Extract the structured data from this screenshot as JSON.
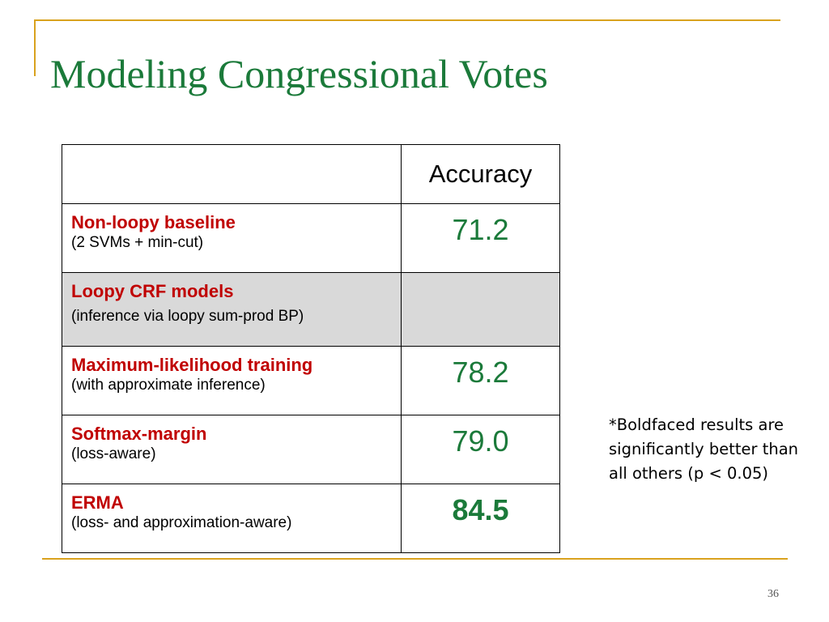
{
  "slide": {
    "title": "Modeling Congressional Votes",
    "page_number": "36"
  },
  "table": {
    "header": {
      "method": "",
      "accuracy": "Accuracy"
    },
    "rows": [
      {
        "name": "Non-loopy baseline",
        "desc": "(2 SVMs + min-cut)",
        "accuracy": "71.2",
        "bold": false,
        "shaded": false
      },
      {
        "name": "Loopy CRF models",
        "desc": "(inference via loopy sum-prod BP)",
        "accuracy": "",
        "bold": false,
        "shaded": true
      },
      {
        "name": "Maximum-likelihood training",
        "desc": "(with approximate inference)",
        "accuracy": "78.2",
        "bold": false,
        "shaded": false
      },
      {
        "name": "Softmax-margin",
        "desc": "(loss-aware)",
        "accuracy": "79.0",
        "bold": false,
        "shaded": false
      },
      {
        "name": "ERMA",
        "desc": "(loss- and approximation-aware)",
        "accuracy": "84.5",
        "bold": true,
        "shaded": false
      }
    ]
  },
  "note": "*Boldfaced results are significantly better than all others (p < 0.05)",
  "colors": {
    "title": "#1b7a3a",
    "method_name": "#c00000",
    "accuracy": "#1b7a3a",
    "rule": "#d9a21e",
    "shaded_row": "#d9d9d9"
  }
}
